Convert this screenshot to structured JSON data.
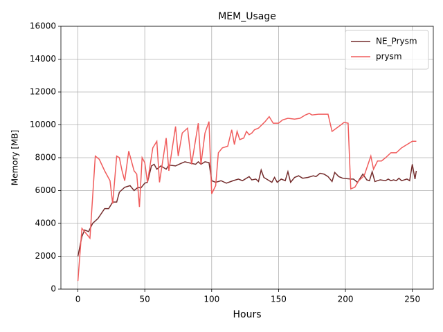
{
  "chart_data": {
    "type": "line",
    "title": "MEM_Usage",
    "x_label": "Hours",
    "y_label": "Memory [MB]",
    "xlim": [
      -12.7,
      265.7
    ],
    "ylim": [
      0,
      16000
    ],
    "xticks": [
      0,
      50,
      100,
      150,
      200,
      250
    ],
    "yticks": [
      0,
      2000,
      4000,
      6000,
      8000,
      10000,
      12000,
      14000,
      16000
    ],
    "grid": true,
    "legend": "upper right",
    "series": [
      {
        "name": "NE_Prysm",
        "color": "#732b2b",
        "x": [
          0,
          3,
          5,
          8,
          11,
          15,
          20,
          23,
          26,
          29,
          31,
          35,
          39,
          42,
          45,
          47,
          50,
          52,
          55,
          57,
          59,
          62,
          66,
          68,
          73,
          77,
          80,
          85,
          88,
          90,
          92,
          95,
          98,
          100,
          103,
          107,
          111,
          116,
          120,
          123,
          128,
          130,
          133,
          135,
          137,
          139,
          145,
          147,
          149,
          152,
          155,
          157,
          159,
          162,
          165,
          168,
          172,
          176,
          178,
          181,
          184,
          187,
          190,
          192,
          195,
          198,
          204,
          206,
          209,
          213,
          216,
          218,
          220,
          222,
          226,
          230,
          232,
          234,
          236,
          238,
          240,
          242,
          244,
          246,
          248,
          250,
          252,
          253
        ],
        "values": [
          2000,
          3200,
          3600,
          3500,
          4000,
          4300,
          4900,
          4900,
          5300,
          5300,
          5900,
          6200,
          6300,
          6000,
          6200,
          6150,
          6450,
          6500,
          7500,
          7600,
          7300,
          7500,
          7300,
          7550,
          7500,
          7650,
          7750,
          7650,
          7600,
          7750,
          7600,
          7750,
          7700,
          6600,
          6500,
          6600,
          6450,
          6600,
          6700,
          6600,
          6850,
          6650,
          6700,
          6550,
          7250,
          6800,
          6500,
          6800,
          6500,
          6700,
          6600,
          7150,
          6500,
          6800,
          6900,
          6750,
          6800,
          6900,
          6850,
          7050,
          7000,
          6850,
          6550,
          7100,
          6850,
          6750,
          6700,
          6700,
          6500,
          7000,
          6650,
          6600,
          7150,
          6550,
          6650,
          6600,
          6700,
          6600,
          6650,
          6600,
          6750,
          6600,
          6650,
          6700,
          6600,
          7600,
          6700,
          7200
        ]
      },
      {
        "name": "prysm",
        "color": "#f05c5c",
        "x": [
          0,
          3,
          5,
          9,
          13,
          16,
          20,
          24,
          26,
          29,
          31,
          33,
          35,
          38,
          42,
          44,
          46,
          48,
          50,
          52,
          56,
          59,
          61,
          66,
          68,
          73,
          75,
          78,
          82,
          85,
          90,
          92,
          95,
          98,
          100,
          103,
          105,
          108,
          112,
          115,
          117,
          119,
          121,
          124,
          126,
          128,
          130,
          132,
          135,
          140,
          143,
          146,
          150,
          153,
          157,
          162,
          166,
          170,
          173,
          175,
          180,
          187,
          190,
          195,
          199,
          202,
          204,
          207,
          210,
          214,
          219,
          221,
          224,
          227,
          230,
          234,
          238,
          242,
          246,
          250,
          253
        ],
        "values": [
          500,
          3700,
          3500,
          3100,
          8100,
          7900,
          7200,
          6600,
          5200,
          8100,
          8000,
          7200,
          6600,
          8400,
          7200,
          7000,
          5000,
          8000,
          7700,
          6500,
          8600,
          9000,
          6500,
          9200,
          7200,
          9900,
          8100,
          9500,
          9800,
          7600,
          10100,
          7600,
          9500,
          10200,
          5800,
          6300,
          8300,
          8600,
          8700,
          9700,
          8800,
          9600,
          9100,
          9200,
          9600,
          9400,
          9500,
          9700,
          9800,
          10200,
          10500,
          10100,
          10100,
          10300,
          10400,
          10350,
          10400,
          10600,
          10700,
          10600,
          10650,
          10650,
          9600,
          9900,
          10150,
          10100,
          6100,
          6200,
          6600,
          6900,
          8100,
          7300,
          7800,
          7800,
          8000,
          8300,
          8300,
          8600,
          8800,
          9000,
          9000
        ]
      }
    ]
  }
}
